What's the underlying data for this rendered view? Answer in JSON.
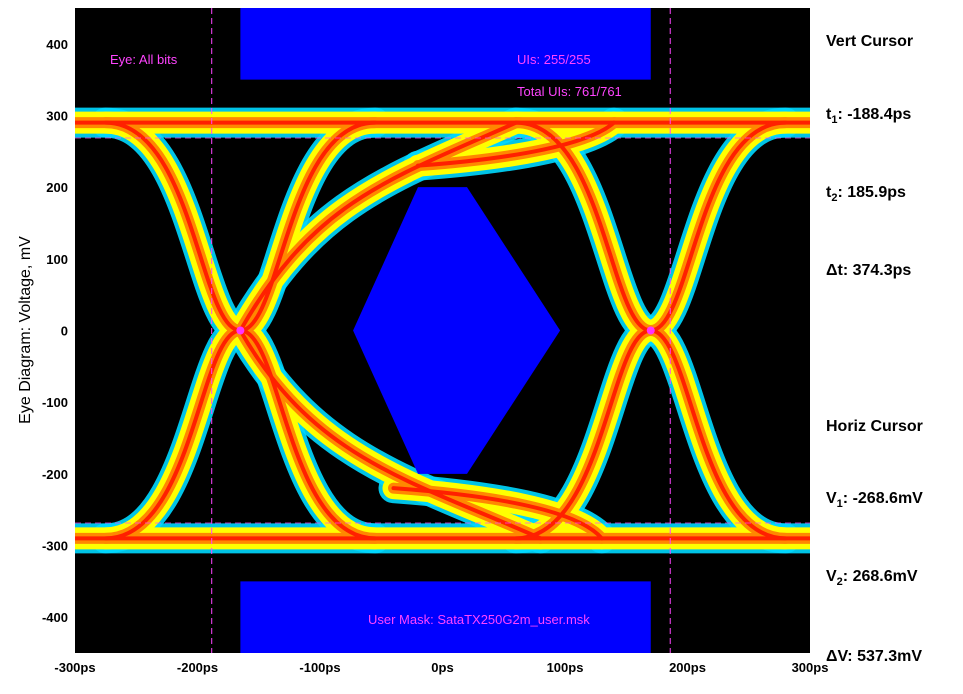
{
  "chart_data": {
    "type": "eye-diagram",
    "ylabel": "Eye Diagram: Voltage, mV",
    "xlim": [
      -300,
      300
    ],
    "ylim": [
      -450,
      450
    ],
    "x_unit": "ps",
    "x_ticks": [
      -300,
      -200,
      -100,
      0,
      100,
      200,
      300
    ],
    "x_tick_labels": [
      "-300ps",
      "-200ps",
      "-100ps",
      "0ps",
      "100ps",
      "200ps",
      "300ps"
    ],
    "y_ticks": [
      400,
      300,
      200,
      100,
      0,
      -100,
      -200,
      -300,
      -400
    ],
    "y_tick_labels": [
      "400",
      "300",
      "200",
      "100",
      "0",
      "-100",
      "-200",
      "-300",
      "-400"
    ],
    "grid": false,
    "background": "#000000",
    "mask_color": "#0000ff",
    "crossing_points": [
      {
        "x": -165,
        "y": 0
      },
      {
        "x": 170,
        "y": 0
      }
    ],
    "vertical_cursors_ps": [
      -188.4,
      185.9
    ],
    "horizontal_cursors_mv": [
      -268.6,
      268.6
    ],
    "mask_polygons": [
      {
        "name": "top",
        "points": [
          [
            -165,
            450
          ],
          [
            170,
            450
          ],
          [
            170,
            350
          ],
          [
            -165,
            350
          ]
        ]
      },
      {
        "name": "bottom",
        "points": [
          [
            -165,
            -350
          ],
          [
            170,
            -350
          ],
          [
            170,
            -450
          ],
          [
            -165,
            -450
          ]
        ]
      },
      {
        "name": "center",
        "points": [
          [
            -73,
            0
          ],
          [
            -20,
            200
          ],
          [
            20,
            200
          ],
          [
            96,
            0
          ],
          [
            20,
            -200
          ],
          [
            -20,
            -200
          ]
        ]
      }
    ],
    "annotations": {
      "eye": "Eye: All bits",
      "uis": "UIs: 255/255",
      "total_uis": "Total UIs: 761/761",
      "mask_file": "User Mask: SataTX250G2m_user.msk"
    }
  },
  "panel": {
    "vert_title": "Vert Cursor",
    "t1_label": "t",
    "t1_sub": "1",
    "t1_value": ": -188.4ps",
    "t2_label": "t",
    "t2_sub": "2",
    "t2_value": ": 185.9ps",
    "dt_label": "Δt: 374.3ps",
    "horiz_title": "Horiz Cursor",
    "v1_label": "V",
    "v1_sub": "1",
    "v1_value": ": -268.6mV",
    "v2_label": "V",
    "v2_sub": "2",
    "v2_value": ": 268.6mV",
    "dv_label": "ΔV: 537.3mV"
  },
  "colors": {
    "trace_outer": "#00d8ff",
    "trace_mid": "#ffff00",
    "trace_inner": "#ff8800",
    "trace_core": "#ff2000",
    "cursor": "#ff44ff"
  }
}
